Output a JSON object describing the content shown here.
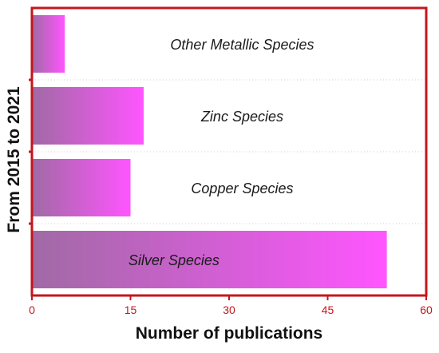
{
  "chart_data": {
    "type": "bar",
    "orientation": "horizontal",
    "xlabel": "Number of publications",
    "ylabel": "From 2015 to 2021",
    "xlim": [
      0,
      60
    ],
    "xticks": [
      0,
      15,
      30,
      45,
      60
    ],
    "categories": [
      "Silver Species",
      "Copper Species",
      "Zinc Species",
      "Other Metallic Species"
    ],
    "values": [
      54,
      15,
      17,
      5
    ],
    "grid": "horizontal dotted",
    "legend": "none",
    "colors": {
      "axis": "#c4161c",
      "bar_start": "#a06aa4",
      "bar_end": "#ff55ff",
      "grid": "#cfcfcf"
    }
  }
}
